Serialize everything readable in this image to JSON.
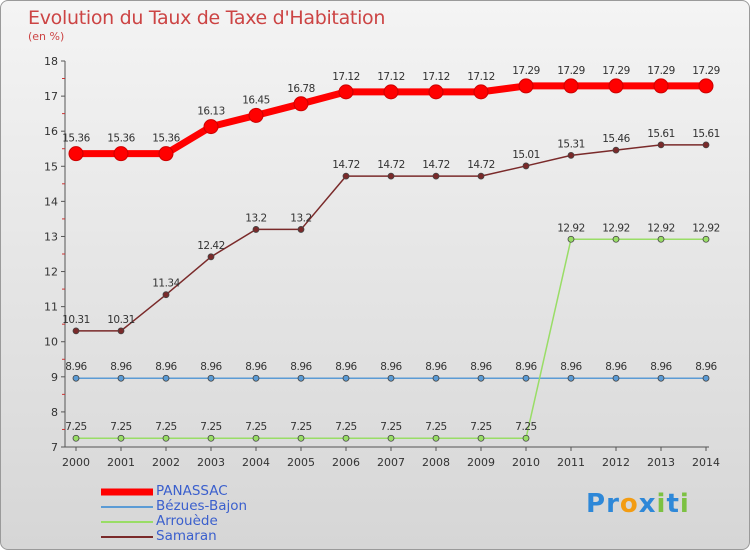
{
  "chart_data": {
    "type": "line",
    "title": "Evolution du Taux de Taxe d'Habitation",
    "subtitle": "(en %)",
    "x": [
      "2000",
      "2001",
      "2002",
      "2003",
      "2004",
      "2005",
      "2006",
      "2007",
      "2008",
      "2009",
      "2010",
      "2011",
      "2012",
      "2013",
      "2014"
    ],
    "y_ticks": [
      "7",
      "8",
      "9",
      "10",
      "11",
      "12",
      "13",
      "14",
      "15",
      "16",
      "17",
      "18"
    ],
    "ylim": [
      7,
      18
    ],
    "grid": false,
    "legend_position": "bottom-left",
    "series": [
      {
        "name": "PANASSAC",
        "color": "#ff0000",
        "values": [
          15.36,
          15.36,
          15.36,
          16.13,
          16.45,
          16.78,
          17.12,
          17.12,
          17.12,
          17.12,
          17.29,
          17.29,
          17.29,
          17.29,
          17.29
        ],
        "labels": [
          "15.36",
          "15.36",
          "15.36",
          "16.13",
          "16.45",
          "16.78",
          "17.12",
          "17.12",
          "17.12",
          "17.12",
          "17.29",
          "17.29",
          "17.29",
          "17.29",
          "17.29"
        ]
      },
      {
        "name": "Bézues-Bajon",
        "color": "#5b9bd5",
        "values": [
          8.96,
          8.96,
          8.96,
          8.96,
          8.96,
          8.96,
          8.96,
          8.96,
          8.96,
          8.96,
          8.96,
          8.96,
          8.96,
          8.96,
          8.96
        ],
        "labels": [
          "8.96",
          "8.96",
          "8.96",
          "8.96",
          "8.96",
          "8.96",
          "8.96",
          "8.96",
          "8.96",
          "8.96",
          "8.96",
          "8.96",
          "8.96",
          "8.96",
          "8.96"
        ]
      },
      {
        "name": "Arrouède",
        "color": "#99dd66",
        "values": [
          7.25,
          7.25,
          7.25,
          7.25,
          7.25,
          7.25,
          7.25,
          7.25,
          7.25,
          7.25,
          7.25,
          12.92,
          12.92,
          12.92,
          12.92
        ],
        "labels": [
          "7.25",
          "7.25",
          "7.25",
          "7.25",
          "7.25",
          "7.25",
          "7.25",
          "7.25",
          "7.25",
          "7.25",
          "7.25",
          "12.92",
          "12.92",
          "12.92",
          "12.92"
        ]
      },
      {
        "name": "Samaran",
        "color": "#7a2a2a",
        "values": [
          10.31,
          10.31,
          11.34,
          12.42,
          13.2,
          13.2,
          14.72,
          14.72,
          14.72,
          14.72,
          15.01,
          15.31,
          15.46,
          15.61,
          15.61
        ],
        "labels": [
          "10.31",
          "10.31",
          "11.34",
          "12.42",
          "13.2",
          "13.2",
          "14.72",
          "14.72",
          "14.72",
          "14.72",
          "15.01",
          "15.31",
          "15.46",
          "15.61",
          "15.61"
        ]
      }
    ]
  },
  "logo": {
    "letters": [
      "P",
      "r",
      "o",
      "x",
      "i",
      "t",
      "i"
    ],
    "colors": [
      "#2e88d8",
      "#2e88d8",
      "#f39c12",
      "#2e88d8",
      "#7cc142",
      "#2e88d8",
      "#7cc142"
    ]
  }
}
